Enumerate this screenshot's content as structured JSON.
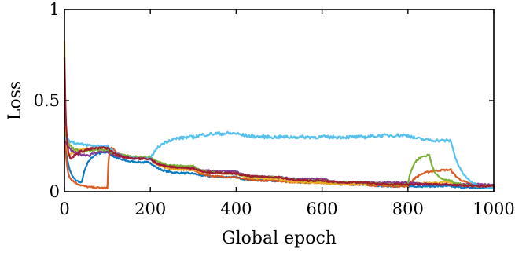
{
  "chart_data": {
    "type": "line",
    "title": "",
    "xlabel": "Global epoch",
    "ylabel": "Loss",
    "xlim": [
      0,
      1000
    ],
    "ylim": [
      0,
      1
    ],
    "xticks": [
      0,
      200,
      400,
      600,
      800,
      1000
    ],
    "yticks": [
      0,
      0.5,
      1
    ],
    "xtick_labels": [
      "0",
      "200",
      "400",
      "600",
      "800",
      "1000"
    ],
    "ytick_labels": [
      "0",
      "0.5",
      "1"
    ],
    "grid": false,
    "legend": "none",
    "series_colors": [
      "#0072BD",
      "#D95319",
      "#EDB120",
      "#7E2F8E",
      "#77AC30",
      "#4DBEEE",
      "#A2142F",
      "#0072BD",
      "#D95319",
      "#7E2F8E"
    ],
    "series": [
      {
        "start_value": 0.3,
        "low_value": 0.02,
        "restarts": [
          [
            0,
            0.3
          ],
          [
            40,
            0.05
          ],
          [
            100,
            0.22
          ],
          [
            200,
            0.16
          ],
          [
            300,
            0.1
          ],
          [
            400,
            0.08
          ],
          [
            500,
            0.06
          ],
          [
            600,
            0.05
          ],
          [
            700,
            0.04
          ],
          [
            800,
            0.03
          ],
          [
            900,
            0.03
          ],
          [
            1000,
            0.02
          ]
        ]
      },
      {
        "start_value": 0.35,
        "low_value": 0.02,
        "restarts": [
          [
            0,
            0.35
          ],
          [
            20,
            0.06
          ],
          [
            100,
            0.02
          ],
          [
            110,
            0.24
          ],
          [
            200,
            0.18
          ],
          [
            300,
            0.12
          ],
          [
            400,
            0.08
          ],
          [
            500,
            0.06
          ],
          [
            600,
            0.05
          ],
          [
            700,
            0.04
          ],
          [
            800,
            0.03
          ],
          [
            900,
            0.12
          ],
          [
            1000,
            0.03
          ]
        ]
      },
      {
        "start_value": 0.8,
        "low_value": 0.02,
        "restarts": [
          [
            0,
            0.8
          ],
          [
            10,
            0.2
          ],
          [
            100,
            0.24
          ],
          [
            200,
            0.18
          ],
          [
            300,
            0.12
          ],
          [
            400,
            0.1
          ],
          [
            500,
            0.07
          ],
          [
            600,
            0.05
          ],
          [
            700,
            0.04
          ],
          [
            800,
            0.04
          ],
          [
            900,
            0.05
          ],
          [
            1000,
            0.03
          ]
        ]
      },
      {
        "start_value": 0.28,
        "low_value": 0.03,
        "restarts": [
          [
            0,
            0.28
          ],
          [
            60,
            0.2
          ],
          [
            100,
            0.22
          ],
          [
            200,
            0.18
          ],
          [
            300,
            0.13
          ],
          [
            400,
            0.11
          ],
          [
            500,
            0.08
          ],
          [
            600,
            0.07
          ],
          [
            700,
            0.05
          ],
          [
            800,
            0.05
          ],
          [
            900,
            0.04
          ],
          [
            1000,
            0.04
          ]
        ]
      },
      {
        "start_value": 0.32,
        "low_value": 0.02,
        "restarts": [
          [
            0,
            0.32
          ],
          [
            50,
            0.22
          ],
          [
            100,
            0.23
          ],
          [
            200,
            0.19
          ],
          [
            300,
            0.14
          ],
          [
            400,
            0.1
          ],
          [
            500,
            0.08
          ],
          [
            600,
            0.06
          ],
          [
            700,
            0.05
          ],
          [
            800,
            0.04
          ],
          [
            850,
            0.2
          ],
          [
            900,
            0.06
          ],
          [
            1000,
            0.03
          ]
        ]
      },
      {
        "start_value": 0.3,
        "low_value": 0.02,
        "restarts": [
          [
            0,
            0.3
          ],
          [
            100,
            0.25
          ],
          [
            200,
            0.18
          ],
          [
            300,
            0.3
          ],
          [
            400,
            0.32
          ],
          [
            500,
            0.3
          ],
          [
            600,
            0.3
          ],
          [
            700,
            0.3
          ],
          [
            800,
            0.31
          ],
          [
            900,
            0.28
          ],
          [
            1000,
            0.02
          ]
        ]
      },
      {
        "start_value": 0.75,
        "low_value": 0.02,
        "restarts": [
          [
            0,
            0.75
          ],
          [
            15,
            0.18
          ],
          [
            100,
            0.24
          ],
          [
            200,
            0.18
          ],
          [
            300,
            0.13
          ],
          [
            400,
            0.1
          ],
          [
            500,
            0.08
          ],
          [
            600,
            0.06
          ],
          [
            700,
            0.05
          ],
          [
            800,
            0.04
          ],
          [
            900,
            0.04
          ],
          [
            1000,
            0.03
          ]
        ]
      }
    ]
  }
}
